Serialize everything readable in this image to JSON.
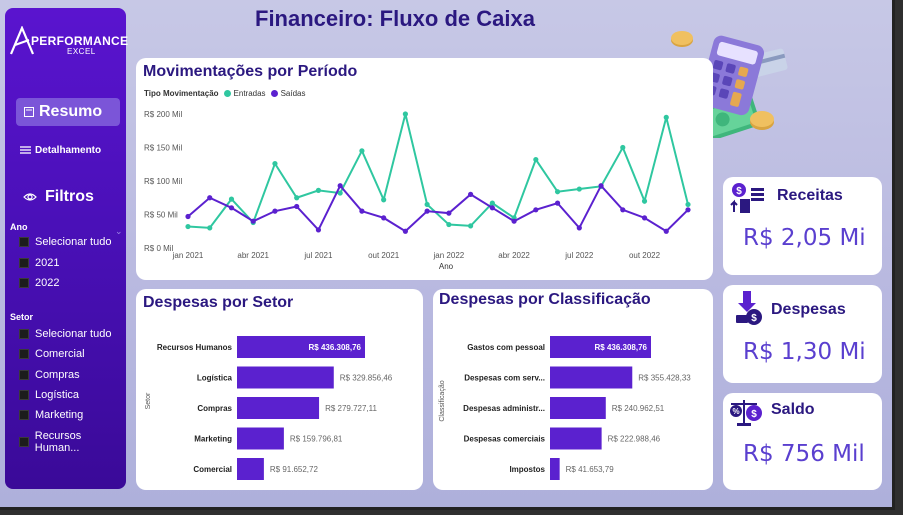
{
  "title": "Financeiro: Fluxo de Caixa",
  "sidebar": {
    "logo_text": "PERFORMANCE",
    "logo_sub": "EXCEL",
    "nav": [
      {
        "label": "Resumo",
        "icon": "report-icon",
        "active": true
      },
      {
        "label": "Detalhamento",
        "icon": "menu-icon",
        "active": false
      }
    ],
    "filters_title": "Filtros",
    "filters_icon": "eye-icon",
    "groups": [
      {
        "label": "Ano",
        "items": [
          "Selecionar tudo",
          "2021",
          "2022"
        ]
      },
      {
        "label": "Setor",
        "items": [
          "Selecionar tudo",
          "Comercial",
          "Compras",
          "Logística",
          "Marketing",
          "Recursos Human..."
        ]
      }
    ]
  },
  "line_chart": {
    "title": "Movimentações por Período",
    "legend_title": "Tipo Movimentação",
    "xlabel": "Ano",
    "chart_data": {
      "type": "line",
      "x": [
        "2021-01",
        "2021-02",
        "2021-03",
        "2021-04",
        "2021-05",
        "2021-06",
        "2021-07",
        "2021-08",
        "2021-09",
        "2021-10",
        "2021-11",
        "2021-12",
        "2022-01",
        "2022-02",
        "2022-03",
        "2022-04",
        "2022-05",
        "2022-06",
        "2022-07",
        "2022-08",
        "2022-09",
        "2022-10",
        "2022-11",
        "2022-12"
      ],
      "x_ticks": [
        "jan 2021",
        "abr 2021",
        "jul 2021",
        "out 2021",
        "jan 2022",
        "abr 2022",
        "jul 2022",
        "out 2022"
      ],
      "y_ticks": [
        "R$ 0 Mil",
        "R$ 50 Mil",
        "R$ 100 Mil",
        "R$ 150 Mil",
        "R$ 200 Mil"
      ],
      "ylim": [
        0,
        200
      ],
      "series": [
        {
          "name": "Entradas",
          "color": "#2fc7a0",
          "values": [
            32,
            30,
            73,
            38,
            126,
            75,
            86,
            82,
            145,
            72,
            200,
            65,
            35,
            33,
            67,
            45,
            132,
            84,
            88,
            92,
            150,
            70,
            195,
            65
          ]
        },
        {
          "name": "Saídas",
          "color": "#5b21cf",
          "values": [
            47,
            75,
            60,
            40,
            55,
            62,
            27,
            93,
            55,
            45,
            25,
            55,
            52,
            80,
            60,
            40,
            57,
            67,
            30,
            93,
            57,
            45,
            25,
            57
          ]
        }
      ]
    }
  },
  "setor_chart": {
    "title": "Despesas por Setor",
    "axis_label": "Setor",
    "chart_data": {
      "type": "bar",
      "categories": [
        "Recursos Humanos",
        "Logística",
        "Compras",
        "Marketing",
        "Comercial"
      ],
      "values": [
        436308.76,
        329856.46,
        279727.11,
        159796.81,
        91652.72
      ],
      "labels": [
        "R$ 436.308,76",
        "R$ 329.856,46",
        "R$ 279.727,11",
        "R$ 159.796,81",
        "R$ 91.652,72"
      ]
    }
  },
  "class_chart": {
    "title": "Despesas por Classificação",
    "axis_label": "Classificação",
    "chart_data": {
      "type": "bar",
      "categories": [
        "Gastos com pessoal",
        "Despesas com serv...",
        "Despesas administr...",
        "Despesas comerciais",
        "Impostos"
      ],
      "values": [
        436308.76,
        355428.33,
        240962.51,
        222988.46,
        41653.79
      ],
      "labels": [
        "R$ 436.308,76",
        "R$ 355.428,33",
        "R$ 240.962,51",
        "R$ 222.988,46",
        "R$ 41.653,79"
      ]
    }
  },
  "kpis": [
    {
      "label": "Receitas",
      "value": "R$ 2,05 Mi",
      "icon": "money-stack-icon"
    },
    {
      "label": "Despesas",
      "value": "R$ 1,30 Mi",
      "icon": "money-down-icon"
    },
    {
      "label": "Saldo",
      "value": "R$ 756 Mil",
      "icon": "scale-balance-icon"
    }
  ],
  "colors": {
    "accent": "#5b21cf",
    "teal": "#2fc7a0",
    "title": "#2b1880",
    "bar": "#5b21cf"
  }
}
